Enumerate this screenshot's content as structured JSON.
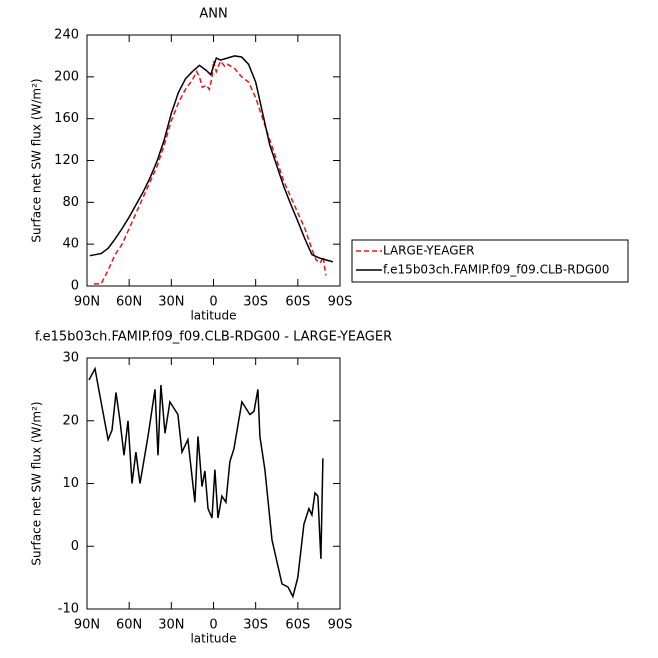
{
  "chart_data": [
    {
      "type": "line",
      "title": "ANN",
      "xlabel": "latitude",
      "ylabel": "Surface net SW flux (W/m²)",
      "xlim": [
        90,
        -90
      ],
      "ylim": [
        0,
        240
      ],
      "xticks": [
        {
          "value": 90,
          "label": "90N"
        },
        {
          "value": 60,
          "label": "60N"
        },
        {
          "value": 30,
          "label": "30N"
        },
        0,
        {
          "value": -30,
          "label": "30S"
        },
        {
          "value": -60,
          "label": "60S"
        },
        {
          "value": -90,
          "label": "90S"
        }
      ],
      "yticks": [
        0,
        40,
        80,
        120,
        160,
        200,
        240
      ],
      "legend": "outside-right",
      "series": [
        {
          "name": "LARGE-YEAGER",
          "color": "#e8141b",
          "dash": true,
          "x": [
            85,
            80,
            75,
            70,
            65,
            60,
            55,
            50,
            45,
            40,
            35,
            30,
            25,
            20,
            15,
            12,
            10,
            8,
            5,
            3,
            1,
            0,
            -2,
            -5,
            -8,
            -10,
            -15,
            -20,
            -25,
            -30,
            -35,
            -40,
            -45,
            -50,
            -55,
            -60,
            -65,
            -70,
            -73,
            -76,
            -78,
            -80
          ],
          "values": [
            2,
            2,
            15,
            30,
            40,
            55,
            70,
            85,
            100,
            115,
            135,
            158,
            175,
            188,
            197,
            205,
            200,
            190,
            192,
            188,
            200,
            215,
            205,
            215,
            210,
            212,
            208,
            200,
            195,
            180,
            160,
            140,
            120,
            100,
            85,
            70,
            55,
            35,
            25,
            22,
            28,
            10
          ]
        },
        {
          "name": "f.e15b03ch.FAMIP.f09_f09.CLB-RDG00",
          "color": "#000000",
          "dash": false,
          "x": [
            88,
            80,
            75,
            70,
            65,
            60,
            55,
            50,
            45,
            40,
            35,
            30,
            25,
            20,
            15,
            10,
            5,
            2,
            0,
            -2,
            -5,
            -10,
            -15,
            -20,
            -25,
            -30,
            -35,
            -40,
            -45,
            -50,
            -55,
            -60,
            -65,
            -70,
            -75,
            -80,
            -85
          ],
          "values": [
            29,
            31,
            36,
            45,
            55,
            66,
            78,
            90,
            104,
            120,
            140,
            165,
            185,
            198,
            205,
            211,
            206,
            202,
            210,
            218,
            216,
            218,
            220,
            219,
            212,
            195,
            165,
            135,
            115,
            95,
            78,
            62,
            45,
            30,
            27,
            25,
            23
          ]
        }
      ]
    },
    {
      "type": "line",
      "title": "f.e15b03ch.FAMIP.f09_f09.CLB-RDG00 - LARGE-YEAGER",
      "xlabel": "latitude",
      "ylabel": "Surface net SW flux (W/m²)",
      "xlim": [
        90,
        -90
      ],
      "ylim": [
        -10,
        30
      ],
      "xticks": [
        {
          "value": 90,
          "label": "90N"
        },
        {
          "value": 60,
          "label": "60N"
        },
        {
          "value": 30,
          "label": "30N"
        },
        0,
        {
          "value": -30,
          "label": "30S"
        },
        {
          "value": -60,
          "label": "60S"
        },
        {
          "value": -90,
          "label": "90S"
        }
      ],
      "yticks": [
        -10,
        0,
        10,
        20,
        30
      ],
      "series": [
        {
          "color": "#000000",
          "dash": false,
          "x": [
            88.6,
            84.3,
            80.8,
            75,
            72.2,
            69.4,
            66.5,
            63.7,
            60.8,
            58,
            55.2,
            52.3,
            46.6,
            41.6,
            39.5,
            37.4,
            34.5,
            31,
            25.3,
            22.4,
            18.2,
            13.2,
            11,
            8.2,
            6.1,
            3.9,
            1.1,
            -1,
            -3.2,
            -6,
            -8.8,
            -11.7,
            -14.5,
            -20.2,
            -25.9,
            -28.8,
            -31.6,
            -33,
            -36.6,
            -41.6,
            -48.7,
            -53,
            -56.5,
            -60,
            -64.3,
            -67.9,
            -70,
            -72.2,
            -74.3,
            -76.4,
            -77.8
          ],
          "values": [
            26.5,
            28.3,
            24,
            17,
            18.5,
            24.5,
            20,
            14.5,
            20,
            10,
            15,
            10,
            17.5,
            25,
            14.5,
            25.7,
            18,
            23,
            21,
            15,
            17,
            7,
            17.5,
            9.5,
            12,
            6,
            4.5,
            12.2,
            4.5,
            8,
            7,
            13.5,
            15.5,
            23,
            21,
            21.5,
            25,
            17.5,
            12.2,
            1,
            -6,
            -6.5,
            -8,
            -5,
            3.5,
            6,
            5,
            8.5,
            8,
            -2,
            14
          ]
        }
      ]
    }
  ]
}
